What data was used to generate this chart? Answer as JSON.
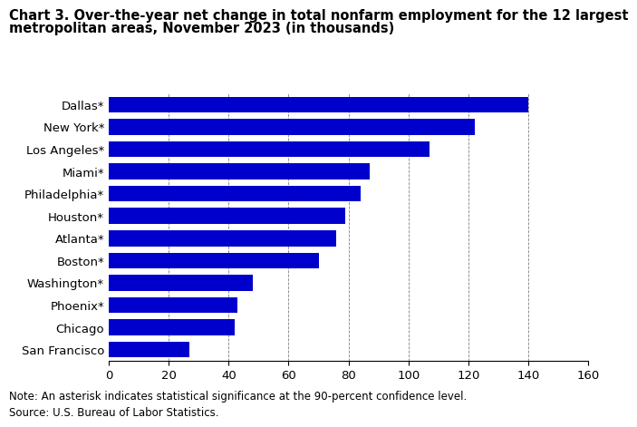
{
  "title_line1": "Chart 3. Over-the-year net change in total nonfarm employment for the 12 largest",
  "title_line2": "metropolitan areas, November 2023 (in thousands)",
  "categories": [
    "San Francisco",
    "Chicago",
    "Phoenix*",
    "Washington*",
    "Boston*",
    "Atlanta*",
    "Houston*",
    "Philadelphia*",
    "Miami*",
    "Los Angeles*",
    "New York*",
    "Dallas*"
  ],
  "values": [
    27,
    42,
    43,
    48,
    70,
    76,
    79,
    84,
    87,
    107,
    122,
    140
  ],
  "bar_color": "#0000cc",
  "xlim": [
    0,
    160
  ],
  "xticks": [
    0,
    20,
    40,
    60,
    80,
    100,
    120,
    140,
    160
  ],
  "note": "Note: An asterisk indicates statistical significance at the 90-percent confidence level.",
  "source": "Source: U.S. Bureau of Labor Statistics.",
  "bar_height": 0.72,
  "title_fontsize": 10.5,
  "label_fontsize": 9.5,
  "tick_fontsize": 9.5,
  "note_fontsize": 8.5
}
